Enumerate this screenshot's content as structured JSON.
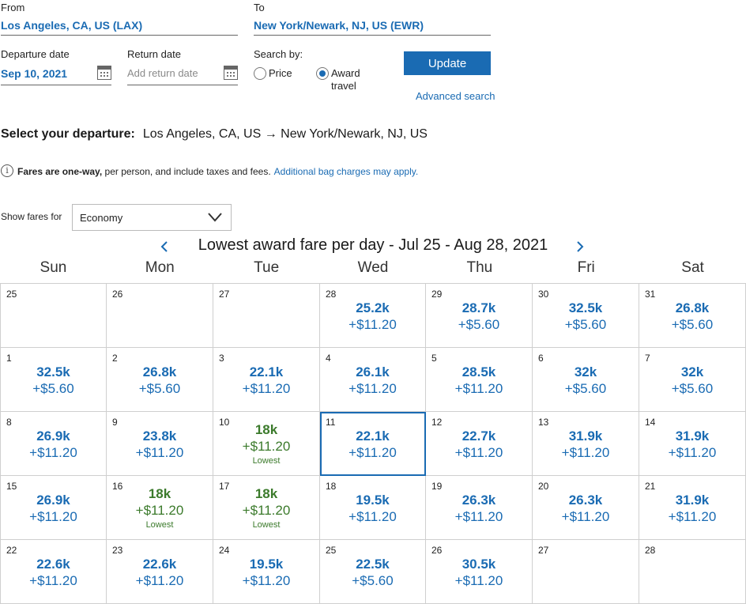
{
  "search": {
    "from_label": "From",
    "from_value": "Los Angeles, CA, US (LAX)",
    "to_label": "To",
    "to_value": "New York/Newark, NJ, US (EWR)",
    "departure_label": "Departure date",
    "departure_value": "Sep 10, 2021",
    "return_label": "Return date",
    "return_placeholder": "Add return date",
    "search_by_label": "Search by:",
    "price_label": "Price",
    "award_label_line1": "Award",
    "award_label_line2": "travel",
    "selected_search_by": "award",
    "update_label": "Update",
    "advanced_search_label": "Advanced search"
  },
  "selection": {
    "heading": "Select your departure:",
    "route": "Los Angeles, CA, US → New York/Newark, NJ, US"
  },
  "notice": {
    "bold": "Fares are one-way,",
    "text": "per person, and include taxes and fees.",
    "link": "Additional bag charges may apply."
  },
  "filter": {
    "label": "Show fares for",
    "value": "Economy"
  },
  "calendar": {
    "title": "Lowest award fare per day - Jul 25 - Aug 28, 2021",
    "weekdays": [
      "Sun",
      "Mon",
      "Tue",
      "Wed",
      "Thu",
      "Fri",
      "Sat"
    ],
    "lowest_label": "Lowest",
    "selected_day": "11",
    "weeks": [
      [
        {
          "day": "25"
        },
        {
          "day": "26"
        },
        {
          "day": "27"
        },
        {
          "day": "28",
          "miles": "25.2k",
          "tax": "+$11.20"
        },
        {
          "day": "29",
          "miles": "28.7k",
          "tax": "+$5.60"
        },
        {
          "day": "30",
          "miles": "32.5k",
          "tax": "+$5.60"
        },
        {
          "day": "31",
          "miles": "26.8k",
          "tax": "+$5.60"
        }
      ],
      [
        {
          "day": "1",
          "miles": "32.5k",
          "tax": "+$5.60"
        },
        {
          "day": "2",
          "miles": "26.8k",
          "tax": "+$5.60"
        },
        {
          "day": "3",
          "miles": "22.1k",
          "tax": "+$11.20"
        },
        {
          "day": "4",
          "miles": "26.1k",
          "tax": "+$11.20"
        },
        {
          "day": "5",
          "miles": "28.5k",
          "tax": "+$11.20"
        },
        {
          "day": "6",
          "miles": "32k",
          "tax": "+$5.60"
        },
        {
          "day": "7",
          "miles": "32k",
          "tax": "+$5.60"
        }
      ],
      [
        {
          "day": "8",
          "miles": "26.9k",
          "tax": "+$11.20"
        },
        {
          "day": "9",
          "miles": "23.8k",
          "tax": "+$11.20"
        },
        {
          "day": "10",
          "miles": "18k",
          "tax": "+$11.20",
          "lowest": true
        },
        {
          "day": "11",
          "miles": "22.1k",
          "tax": "+$11.20"
        },
        {
          "day": "12",
          "miles": "22.7k",
          "tax": "+$11.20"
        },
        {
          "day": "13",
          "miles": "31.9k",
          "tax": "+$11.20"
        },
        {
          "day": "14",
          "miles": "31.9k",
          "tax": "+$11.20"
        }
      ],
      [
        {
          "day": "15",
          "miles": "26.9k",
          "tax": "+$11.20"
        },
        {
          "day": "16",
          "miles": "18k",
          "tax": "+$11.20",
          "lowest": true
        },
        {
          "day": "17",
          "miles": "18k",
          "tax": "+$11.20",
          "lowest": true
        },
        {
          "day": "18",
          "miles": "19.5k",
          "tax": "+$11.20"
        },
        {
          "day": "19",
          "miles": "26.3k",
          "tax": "+$11.20"
        },
        {
          "day": "20",
          "miles": "26.3k",
          "tax": "+$11.20"
        },
        {
          "day": "21",
          "miles": "31.9k",
          "tax": "+$11.20"
        }
      ],
      [
        {
          "day": "22",
          "miles": "22.6k",
          "tax": "+$11.20"
        },
        {
          "day": "23",
          "miles": "22.6k",
          "tax": "+$11.20"
        },
        {
          "day": "24",
          "miles": "19.5k",
          "tax": "+$11.20"
        },
        {
          "day": "25",
          "miles": "22.5k",
          "tax": "+$5.60"
        },
        {
          "day": "26",
          "miles": "30.5k",
          "tax": "+$11.20"
        },
        {
          "day": "27"
        },
        {
          "day": "28"
        }
      ]
    ]
  },
  "colors": {
    "accent": "#1a6bb3",
    "lowest_fare": "#3b7a2b",
    "grid_border": "#cfcfcf"
  }
}
